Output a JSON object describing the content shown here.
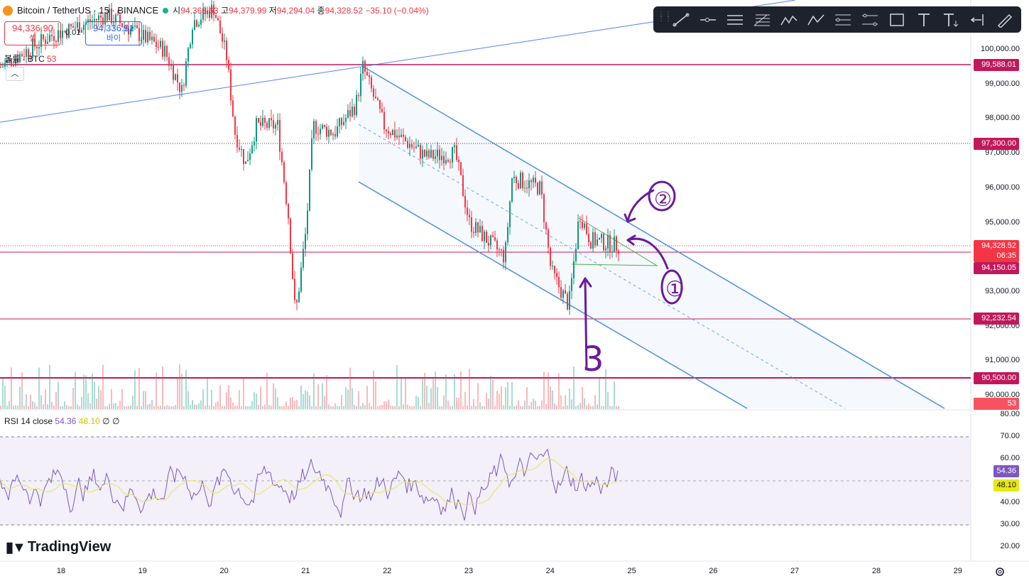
{
  "header": {
    "symbol": "Bitcoin / TetherUS · 15 · BINANCE",
    "open_label": "시",
    "open": "94,363.63",
    "high_label": "고",
    "high": "94,379.99",
    "low_label": "저",
    "low": "94,294.04",
    "close_label": "종",
    "close": "94,328.52",
    "change": "−35.10 (−0.04%)"
  },
  "trade": {
    "sell_price": "94,336.90",
    "sell_label": "셀",
    "spread": "0.01",
    "buy_price": "94,336.91",
    "buy_label": "바이"
  },
  "volume": {
    "label": "볼륨 · BTC",
    "value": "53"
  },
  "rsi": {
    "label": "RSI 14 close",
    "value": "54.36",
    "ma": "48.10",
    "extra1": "∅",
    "extra2": "∅"
  },
  "price_axis": [
    "100,000.00",
    "99,000.00",
    "98,000.00",
    "97,000.00",
    "96,000.00",
    "95,000.00",
    "93,000.00",
    "92,000.00",
    "91,000.00",
    "90,000.00"
  ],
  "rsi_axis": [
    "80.00",
    "70.00",
    "60.00",
    "40.00",
    "30.00",
    "20.00"
  ],
  "price_badges": [
    {
      "text": "99,588.01",
      "color": "#c2185b"
    },
    {
      "text": "97,300.00",
      "color": "#c2185b"
    },
    {
      "text": "94,328.52",
      "color": "#f23645"
    },
    {
      "text": "06:35",
      "color": "#f23645"
    },
    {
      "text": "94,150.05",
      "color": "#c2185b"
    },
    {
      "text": "92,232.54",
      "color": "#c2185b"
    },
    {
      "text": "90,500.00",
      "color": "#c2185b"
    },
    {
      "text": "53",
      "color": "#f7525f"
    }
  ],
  "rsi_badges": [
    {
      "text": "54.36",
      "color": "#7e57c2"
    },
    {
      "text": "48.10",
      "color": "#e8e813"
    }
  ],
  "x_axis": [
    "18",
    "19",
    "20",
    "21",
    "22",
    "23",
    "24",
    "25",
    "26",
    "27",
    "28",
    "29"
  ],
  "annotations": [
    "①",
    "②",
    "3"
  ],
  "brand": "TradingView",
  "toolbar": [
    "trend-line",
    "horizontal-ray",
    "parallel-channel",
    "fib-retracement",
    "xabcd-pattern",
    "abcd-pattern",
    "date-price-range",
    "multi-line",
    "rectangle",
    "text",
    "text-anchored",
    "measure",
    "pen"
  ],
  "colors": {
    "up": "#089981",
    "down": "#f23645",
    "channel": "#5b9bd5",
    "level": "#c2185b",
    "rsi": "#7e57c2",
    "rsi_ma": "#e8e86a",
    "annot": "#6a1b9a"
  }
}
